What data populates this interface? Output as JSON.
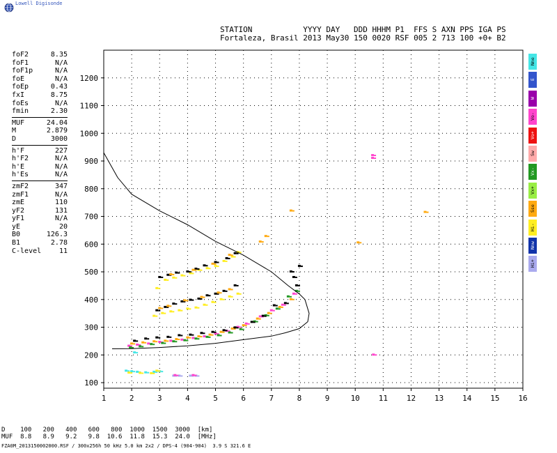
{
  "brand": "Lowell Digisonde",
  "header": {
    "line1": "STATION           YYYY DAY   DDD HHHM P1  FFS S AXN PPS IGA PS",
    "line2": "Fortaleza, Brasil 2013 May30 150 0020 RSF 005 2 713 100 +0+ B2"
  },
  "parameters": [
    [
      [
        "foF2",
        "8.35"
      ],
      [
        "foF1",
        "N/A"
      ],
      [
        "foF1p",
        "N/A"
      ],
      [
        "foE",
        "N/A"
      ],
      [
        "foEp",
        "0.43"
      ],
      [
        "fxI",
        "8.75"
      ],
      [
        "foEs",
        "N/A"
      ],
      [
        "fmin",
        "2.30"
      ]
    ],
    [
      [
        "MUF",
        "24.04"
      ],
      [
        "M",
        "2.879"
      ],
      [
        "D",
        "3000"
      ]
    ],
    [
      [
        "h'F",
        "227"
      ],
      [
        "h'F2",
        "N/A"
      ],
      [
        "h'E",
        "N/A"
      ],
      [
        "h'Es",
        "N/A"
      ]
    ],
    [
      [
        "zmF2",
        "347"
      ],
      [
        "zmF1",
        "N/A"
      ],
      [
        "zmE",
        "110"
      ],
      [
        "yF2",
        "131"
      ],
      [
        "yF1",
        "N/A"
      ],
      [
        "yE",
        "20"
      ],
      [
        "B0",
        "126.3"
      ],
      [
        "B1",
        "2.78"
      ],
      [
        "C-level",
        "11"
      ]
    ]
  ],
  "legend": [
    {
      "label": "Nne",
      "color": "#44e6e6"
    },
    {
      "label": "E",
      "color": "#3355cc"
    },
    {
      "label": "W",
      "color": "#9900aa"
    },
    {
      "label": "Vo-",
      "color": "#ff44cc"
    },
    {
      "label": "Vo+",
      "color": "#ee1111"
    },
    {
      "label": "Sw",
      "color": "#ffaaaa"
    },
    {
      "label": "Vx-",
      "color": "#229922"
    },
    {
      "label": "Vx+",
      "color": "#99ee44"
    },
    {
      "label": "Sse",
      "color": "#ffaa11"
    },
    {
      "label": "Hi-",
      "color": "#ffee22"
    },
    {
      "label": "Nnw",
      "color": "#1133aa"
    },
    {
      "label": "Hi+",
      "color": "#aaaaee"
    }
  ],
  "muf_table": {
    "row1": "D    100   200   400   600   800  1000  1500  3000  [km]",
    "row2": "MUF  8.8   8.9   9.2   9.8  10.6  11.8  15.3  24.0  [MHz]"
  },
  "footer": "FZA0M_2013150002000.RSF / 300x256h 50 kHz 5.0 km 2x2 / DPS-4 (904-904)  3.9 S 321.6 E",
  "chart_data": {
    "type": "scatter",
    "title": "",
    "xlabel": "",
    "ylabel": "",
    "xlim": [
      1,
      16
    ],
    "ylim": [
      80,
      1300
    ],
    "xticks": [
      1,
      2,
      3,
      4,
      5,
      6,
      7,
      8,
      9,
      10,
      11,
      12,
      13,
      14,
      15,
      16
    ],
    "yticks": [
      100,
      200,
      300,
      400,
      500,
      600,
      700,
      800,
      900,
      1000,
      1100,
      1200
    ],
    "grid": "dotted",
    "series": [
      {
        "color": "#ff44cc",
        "points": [
          [
            1.9,
            232
          ],
          [
            2.2,
            236
          ],
          [
            2.6,
            240
          ],
          [
            3.0,
            246
          ],
          [
            3.4,
            250
          ],
          [
            3.8,
            254
          ],
          [
            4.2,
            260
          ],
          [
            4.6,
            266
          ],
          [
            5.0,
            276
          ],
          [
            5.4,
            286
          ],
          [
            5.8,
            300
          ],
          [
            6.1,
            312
          ],
          [
            6.6,
            338
          ],
          [
            7.0,
            360
          ],
          [
            7.4,
            380
          ],
          [
            7.8,
            420
          ]
        ]
      },
      {
        "color": "#ffaa11",
        "points": [
          [
            2.0,
            240
          ],
          [
            2.4,
            244
          ],
          [
            2.8,
            248
          ],
          [
            3.2,
            250
          ],
          [
            3.6,
            256
          ],
          [
            4.0,
            262
          ],
          [
            4.4,
            266
          ],
          [
            4.8,
            272
          ],
          [
            5.2,
            282
          ],
          [
            5.6,
            294
          ],
          [
            6.0,
            306
          ],
          [
            6.5,
            330
          ],
          [
            6.9,
            350
          ],
          [
            7.3,
            372
          ],
          [
            7.7,
            400
          ]
        ]
      },
      {
        "color": "#229922",
        "points": [
          [
            1.95,
            226
          ],
          [
            2.3,
            230
          ],
          [
            2.7,
            238
          ],
          [
            3.1,
            242
          ],
          [
            3.5,
            248
          ],
          [
            3.9,
            252
          ],
          [
            4.3,
            258
          ],
          [
            4.7,
            264
          ],
          [
            5.1,
            270
          ],
          [
            5.5,
            280
          ],
          [
            5.9,
            292
          ],
          [
            6.4,
            320
          ],
          [
            6.8,
            342
          ],
          [
            7.2,
            366
          ],
          [
            7.6,
            410
          ],
          [
            7.9,
            430
          ]
        ]
      },
      {
        "color": "#000000",
        "points": [
          [
            2.1,
            250
          ],
          [
            2.5,
            258
          ],
          [
            2.9,
            262
          ],
          [
            3.3,
            264
          ],
          [
            3.7,
            270
          ],
          [
            4.1,
            272
          ],
          [
            4.5,
            278
          ],
          [
            4.9,
            282
          ],
          [
            5.3,
            288
          ],
          [
            5.7,
            298
          ],
          [
            6.3,
            318
          ],
          [
            6.7,
            340
          ],
          [
            7.1,
            378
          ],
          [
            7.5,
            386
          ],
          [
            7.8,
            480
          ],
          [
            7.7,
            500
          ],
          [
            8.0,
            520
          ],
          [
            7.9,
            450
          ]
        ]
      },
      {
        "color": "#ffee22",
        "points": [
          [
            2.8,
            340
          ],
          [
            3.1,
            350
          ],
          [
            3.4,
            356
          ],
          [
            3.7,
            360
          ],
          [
            4.0,
            366
          ],
          [
            4.3,
            370
          ],
          [
            4.6,
            380
          ],
          [
            4.9,
            390
          ],
          [
            5.2,
            400
          ],
          [
            5.5,
            410
          ],
          [
            5.8,
            420
          ],
          [
            2.9,
            440
          ],
          [
            3.2,
            470
          ],
          [
            3.5,
            478
          ],
          [
            3.8,
            486
          ],
          [
            4.1,
            494
          ],
          [
            4.4,
            506
          ],
          [
            4.7,
            512
          ],
          [
            5.0,
            520
          ],
          [
            5.3,
            538
          ],
          [
            5.6,
            554
          ],
          [
            5.8,
            570
          ]
        ]
      },
      {
        "color": "#000000",
        "points": [
          [
            2.9,
            360
          ],
          [
            3.2,
            372
          ],
          [
            3.5,
            384
          ],
          [
            3.8,
            392
          ],
          [
            4.1,
            398
          ],
          [
            4.4,
            402
          ],
          [
            4.7,
            414
          ],
          [
            5.0,
            420
          ],
          [
            5.3,
            430
          ],
          [
            5.7,
            450
          ],
          [
            3.0,
            480
          ],
          [
            3.3,
            488
          ],
          [
            3.6,
            496
          ],
          [
            4.0,
            500
          ],
          [
            4.3,
            510
          ],
          [
            4.6,
            522
          ],
          [
            5.0,
            534
          ],
          [
            5.4,
            548
          ],
          [
            5.7,
            566
          ]
        ]
      },
      {
        "color": "#ffaa11",
        "points": [
          [
            3.0,
            368
          ],
          [
            3.3,
            376
          ],
          [
            3.9,
            396
          ],
          [
            4.5,
            408
          ],
          [
            5.1,
            424
          ],
          [
            5.5,
            436
          ],
          [
            3.4,
            490
          ],
          [
            4.2,
            506
          ],
          [
            4.9,
            528
          ],
          [
            5.5,
            560
          ],
          [
            6.6,
            608
          ],
          [
            6.8,
            628
          ],
          [
            7.7,
            720
          ],
          [
            12.5,
            715
          ],
          [
            10.1,
            605
          ]
        ]
      },
      {
        "color": "#44e6e6",
        "points": [
          [
            1.8,
            142
          ],
          [
            2.0,
            140
          ],
          [
            2.2,
            138
          ],
          [
            2.5,
            136
          ],
          [
            2.8,
            138
          ],
          [
            3.0,
            140
          ],
          [
            2.1,
            208
          ]
        ]
      },
      {
        "color": "#ffee22",
        "points": [
          [
            1.9,
            135
          ],
          [
            2.3,
            134
          ],
          [
            2.7,
            133
          ],
          [
            2.9,
            142
          ]
        ]
      },
      {
        "color": "#aaaaee",
        "points": [
          [
            3.5,
            124
          ],
          [
            3.7,
            124
          ],
          [
            4.1,
            124
          ],
          [
            4.3,
            124
          ]
        ]
      },
      {
        "color": "#ff44cc",
        "points": [
          [
            3.55,
            126
          ],
          [
            4.2,
            126
          ],
          [
            10.62,
            920
          ],
          [
            10.62,
            910
          ],
          [
            10.65,
            200
          ]
        ]
      }
    ],
    "trace": [
      [
        1.0,
        930
      ],
      [
        1.5,
        840
      ],
      [
        2.0,
        780
      ],
      [
        3.0,
        720
      ],
      [
        4.0,
        670
      ],
      [
        5.0,
        610
      ],
      [
        6.0,
        560
      ],
      [
        7.0,
        500
      ],
      [
        7.6,
        450
      ],
      [
        8.0,
        420
      ],
      [
        8.2,
        400
      ],
      [
        8.35,
        350
      ],
      [
        8.3,
        320
      ],
      [
        8.0,
        295
      ],
      [
        7.5,
        280
      ],
      [
        7.0,
        268
      ],
      [
        6.0,
        255
      ],
      [
        5.0,
        242
      ],
      [
        4.0,
        233
      ],
      [
        3.0,
        227
      ],
      [
        2.0,
        223
      ],
      [
        1.3,
        222
      ]
    ]
  }
}
